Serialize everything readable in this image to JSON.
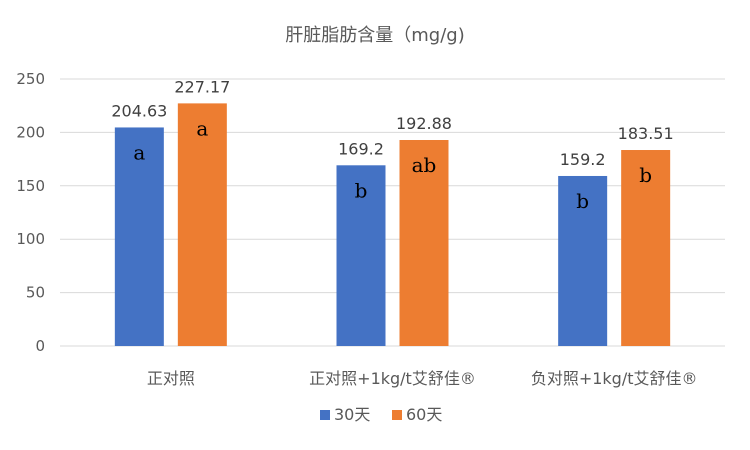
{
  "chart_data": {
    "type": "bar",
    "title": "肝脏脂肪含量（mg/g)",
    "categories": [
      "正对照",
      "正对照+1kg/t艾舒佳®",
      "负对照+1kg/t艾舒佳®"
    ],
    "series": [
      {
        "name": "30天",
        "color": "#4472c4",
        "values": [
          204.63,
          169.2,
          159.2
        ],
        "letters": [
          "a",
          "b",
          "b"
        ]
      },
      {
        "name": "60天",
        "color": "#ed7d31",
        "values": [
          227.17,
          192.88,
          183.51
        ],
        "letters": [
          "a",
          "ab",
          "b"
        ]
      }
    ],
    "data_labels": [
      [
        "204.63",
        "169.2",
        "159.2"
      ],
      [
        "227.17",
        "192.88",
        "183.51"
      ]
    ],
    "y_ticks": [
      0,
      50,
      100,
      150,
      200,
      250
    ],
    "ylim": [
      0,
      250
    ],
    "grid": true,
    "legend": "bottom"
  }
}
